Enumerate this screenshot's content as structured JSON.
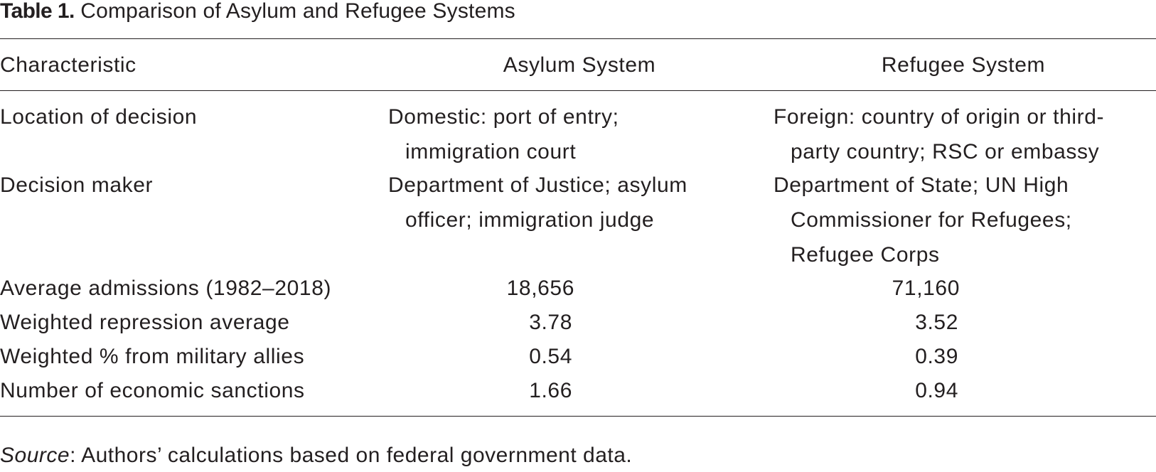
{
  "caption": {
    "label": "Table 1.",
    "title": "Comparison of Asylum and Refugee Systems"
  },
  "table": {
    "headers": [
      "Characteristic",
      "Asylum System",
      "Refugee System"
    ],
    "rows": [
      [
        "Location of decision",
        "Domestic: port of entry; immigration court",
        "Foreign: country of origin or third-party country; RSC or embassy"
      ],
      [
        "Decision maker",
        "Department of Justice; asylum officer; immigration judge",
        "Department of State; UN High Commissioner for Refugees; Refugee Corps"
      ],
      [
        "Average admissions (1982–2018)",
        "18,656",
        "71,160"
      ],
      [
        "Weighted repression average",
        "3.78",
        "3.52"
      ],
      [
        "Weighted % from military allies",
        "0.54",
        "0.39"
      ],
      [
        "Number of economic sanctions",
        "1.66",
        "0.94"
      ]
    ]
  },
  "source": {
    "label": "Source",
    "text": ": Authors’ calculations based on federal government data."
  }
}
